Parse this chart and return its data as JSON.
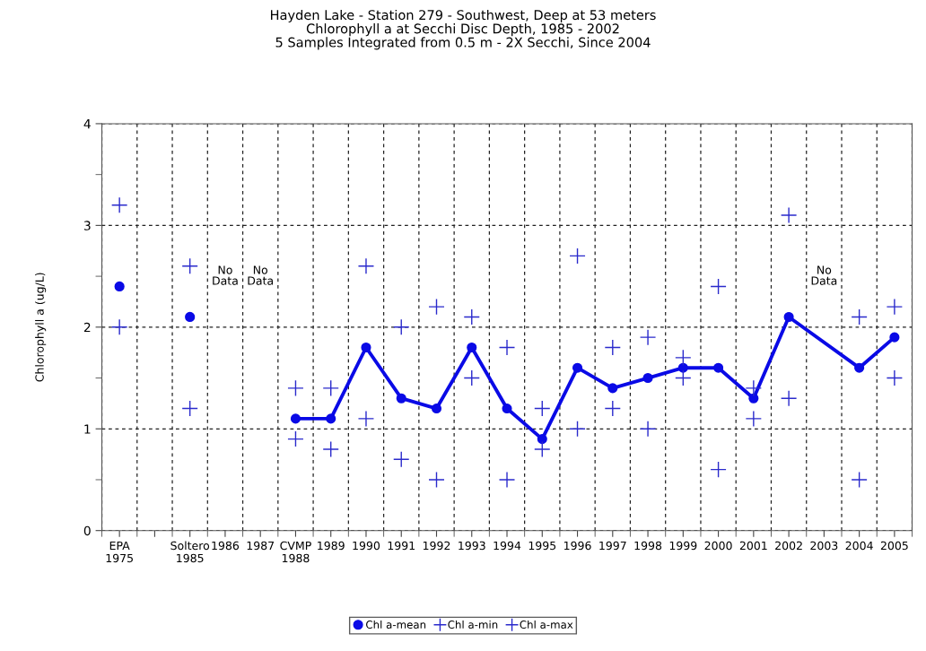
{
  "chart_data": {
    "type": "line",
    "title": "Hayden Lake - Station 279 - Southwest, Deep at 53 meters\nChlorophyll a at Secchi Disc Depth, 1985 - 2002\n5 Samples Integrated from 0.5 m - 2X Secchi, Since 2004",
    "ylabel": "Chlorophyll a (ug/L)",
    "categories": [
      "EPA\n1975",
      null,
      "Soltero\n1985",
      "1986",
      "1987",
      "CVMP\n1988",
      "1989",
      "1990",
      "1991",
      "1992",
      "1993",
      "1994",
      "1995",
      "1996",
      "1997",
      "1998",
      "1999",
      "2000",
      "2001",
      "2002",
      "2003",
      "2004",
      "2005"
    ],
    "series": [
      {
        "name": "Chl a-mean",
        "marker": "circle",
        "color": "#0a0ae6",
        "values": [
          null,
          null,
          null,
          null,
          null,
          1.1,
          1.1,
          1.8,
          1.3,
          1.2,
          1.8,
          1.2,
          0.9,
          1.6,
          1.4,
          1.5,
          1.6,
          1.6,
          1.3,
          2.1,
          null,
          1.6,
          1.9
        ]
      },
      {
        "type": "scatter",
        "marker": "circle",
        "color": "#0a0ae6",
        "values": [
          2.4,
          null,
          2.1,
          null,
          null,
          null,
          null,
          null,
          null,
          null,
          null,
          null,
          null,
          null,
          null,
          null,
          null,
          null,
          null,
          null,
          null,
          null,
          null
        ]
      },
      {
        "name": "Chl a-min",
        "type": "scatter",
        "marker": "cross",
        "color": "#2a2acc",
        "values": [
          2.0,
          null,
          1.2,
          null,
          null,
          0.9,
          0.8,
          1.1,
          0.7,
          0.5,
          1.5,
          0.5,
          0.8,
          1.0,
          1.2,
          1.0,
          1.5,
          0.6,
          1.1,
          1.3,
          null,
          0.5,
          1.5
        ]
      },
      {
        "name": "Chl a-max",
        "type": "scatter",
        "marker": "cross",
        "color": "#2a2acc",
        "values": [
          3.2,
          null,
          2.6,
          null,
          null,
          1.4,
          1.4,
          2.6,
          2.0,
          2.2,
          2.1,
          1.8,
          1.2,
          2.7,
          1.8,
          1.9,
          1.7,
          2.4,
          1.4,
          3.1,
          null,
          2.1,
          2.2
        ]
      }
    ],
    "ylim": [
      0,
      4
    ],
    "yticks": [
      0,
      1,
      2,
      3,
      4
    ],
    "grid": true,
    "legend": "bottom",
    "annotations": [
      {
        "text": "No\nData",
        "x": "1986",
        "y": 2.5
      },
      {
        "text": "No\nData",
        "x": "1987",
        "y": 2.5
      },
      {
        "text": "No\nData",
        "x": "2003",
        "y": 2.5
      }
    ]
  }
}
